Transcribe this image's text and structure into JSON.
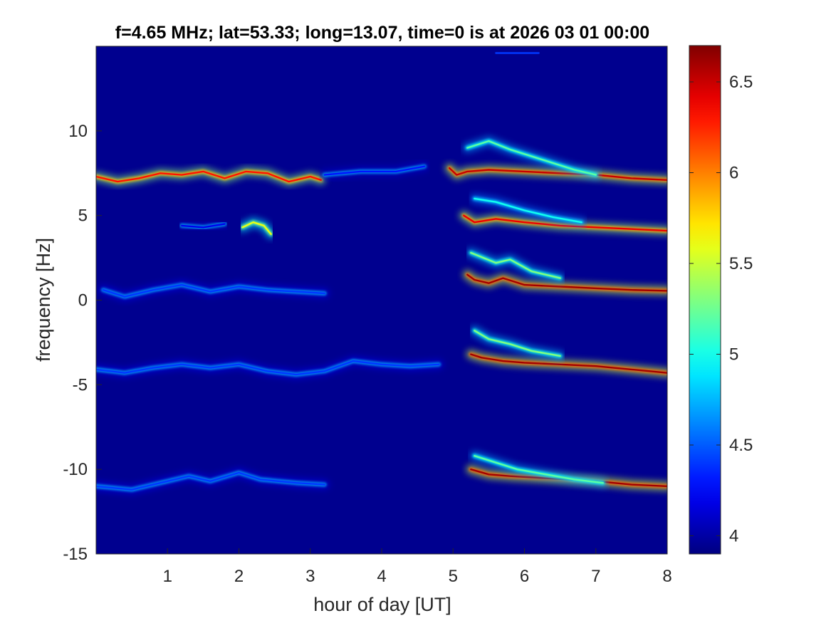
{
  "chart_data": {
    "type": "heatmap",
    "title": "f=4.65 MHz;  lat=53.33; long=13.07, time=0 is at 2026 03 01 00:00",
    "xlabel": "hour of day [UT]",
    "ylabel": "frequency [Hz]",
    "xlim": [
      0,
      8
    ],
    "ylim": [
      -15,
      15
    ],
    "xticks": [
      1,
      2,
      3,
      4,
      5,
      6,
      7,
      8
    ],
    "xtick_labels": [
      "1",
      "2",
      "3",
      "4",
      "5",
      "6",
      "7",
      "8"
    ],
    "yticks": [
      -15,
      -10,
      -5,
      0,
      5,
      10
    ],
    "ytick_labels": [
      "-15",
      "-10",
      "-5",
      "0",
      "5",
      "10"
    ],
    "colormap": "jet",
    "background_color": "#00008f",
    "colorbar": {
      "range": [
        3.9,
        6.7
      ],
      "ticks": [
        4,
        4.5,
        5,
        5.5,
        6,
        6.5
      ],
      "tick_labels": [
        "4",
        "4.5",
        "5",
        "5.5",
        "6",
        "6.5"
      ],
      "placement": "right"
    },
    "traces": [
      {
        "x": [
          0.0,
          0.3,
          0.6,
          0.9,
          1.2,
          1.5,
          1.8,
          2.1,
          2.4,
          2.7,
          3.0,
          3.15
        ],
        "y": [
          7.3,
          7.0,
          7.2,
          7.5,
          7.4,
          7.6,
          7.2,
          7.6,
          7.5,
          7.0,
          7.3,
          7.1
        ],
        "level": 6.3
      },
      {
        "x": [
          3.2,
          3.7,
          4.2,
          4.6
        ],
        "y": [
          7.4,
          7.6,
          7.6,
          7.9
        ],
        "level": 4.3
      },
      {
        "x": [
          2.05,
          2.2,
          2.35,
          2.45
        ],
        "y": [
          4.3,
          4.6,
          4.4,
          3.9
        ],
        "level": 5.6
      },
      {
        "x": [
          1.2,
          1.5,
          1.8
        ],
        "y": [
          4.4,
          4.3,
          4.5
        ],
        "level": 4.2
      },
      {
        "x": [
          0.1,
          0.4,
          0.8,
          1.2,
          1.6,
          2.0,
          2.4,
          2.8,
          3.2
        ],
        "y": [
          0.6,
          0.2,
          0.6,
          0.9,
          0.5,
          0.8,
          0.6,
          0.5,
          0.4
        ],
        "level": 4.4
      },
      {
        "x": [
          0.0,
          0.4,
          0.8,
          1.2,
          1.6,
          2.0,
          2.4,
          2.8,
          3.2,
          3.6,
          4.0,
          4.4,
          4.8
        ],
        "y": [
          -4.1,
          -4.3,
          -4.0,
          -3.8,
          -4.0,
          -3.8,
          -4.2,
          -4.4,
          -4.2,
          -3.6,
          -3.8,
          -3.9,
          -3.8
        ],
        "level": 4.4
      },
      {
        "x": [
          0.0,
          0.5,
          1.0,
          1.3,
          1.6,
          2.0,
          2.3,
          2.8,
          3.2
        ],
        "y": [
          -11.0,
          -11.2,
          -10.7,
          -10.4,
          -10.7,
          -10.2,
          -10.6,
          -10.8,
          -10.9
        ],
        "level": 4.4
      },
      {
        "x": [
          4.95,
          5.05,
          5.2,
          5.5,
          6.0,
          6.5,
          7.0,
          7.5,
          8.0
        ],
        "y": [
          7.8,
          7.4,
          7.6,
          7.7,
          7.6,
          7.5,
          7.4,
          7.2,
          7.1
        ],
        "level": 6.5
      },
      {
        "x": [
          5.2,
          5.5,
          5.8,
          6.1,
          6.4,
          6.7,
          7.0
        ],
        "y": [
          9.0,
          9.4,
          8.9,
          8.5,
          8.1,
          7.7,
          7.4
        ],
        "level": 5.2
      },
      {
        "x": [
          5.15,
          5.3,
          5.6,
          6.0,
          6.5,
          7.0,
          7.5,
          8.0
        ],
        "y": [
          5.0,
          4.6,
          4.8,
          4.6,
          4.4,
          4.3,
          4.2,
          4.1
        ],
        "level": 6.4
      },
      {
        "x": [
          5.3,
          5.6,
          6.0,
          6.4,
          6.8
        ],
        "y": [
          6.0,
          5.8,
          5.3,
          4.9,
          4.6
        ],
        "level": 5.0
      },
      {
        "x": [
          5.2,
          5.3,
          5.5,
          5.7,
          6.0,
          6.5,
          7.0,
          7.5,
          8.0
        ],
        "y": [
          1.5,
          1.2,
          1.0,
          1.3,
          0.9,
          0.8,
          0.7,
          0.6,
          0.55
        ],
        "level": 6.6
      },
      {
        "x": [
          5.25,
          5.6,
          5.8,
          6.1,
          6.5
        ],
        "y": [
          2.8,
          2.2,
          2.4,
          1.7,
          1.3
        ],
        "level": 5.3
      },
      {
        "x": [
          5.25,
          5.4,
          5.7,
          6.0,
          6.5,
          7.0,
          7.5,
          8.0
        ],
        "y": [
          -3.2,
          -3.4,
          -3.6,
          -3.7,
          -3.8,
          -3.9,
          -4.1,
          -4.3
        ],
        "level": 6.6
      },
      {
        "x": [
          5.3,
          5.5,
          5.8,
          6.1,
          6.5
        ],
        "y": [
          -1.8,
          -2.3,
          -2.6,
          -3.0,
          -3.3
        ],
        "level": 5.3
      },
      {
        "x": [
          5.25,
          5.5,
          5.8,
          6.2,
          6.6,
          7.0,
          7.5,
          8.0
        ],
        "y": [
          -10.0,
          -10.3,
          -10.4,
          -10.5,
          -10.6,
          -10.7,
          -10.9,
          -11.0
        ],
        "level": 6.6
      },
      {
        "x": [
          5.3,
          5.6,
          5.9,
          6.3,
          6.7,
          7.1
        ],
        "y": [
          -9.2,
          -9.6,
          -10.0,
          -10.3,
          -10.6,
          -10.8
        ],
        "level": 5.2
      },
      {
        "x": [
          5.6,
          5.9,
          6.2
        ],
        "y": [
          14.6,
          14.6,
          14.6
        ],
        "level": 4.4
      }
    ]
  }
}
